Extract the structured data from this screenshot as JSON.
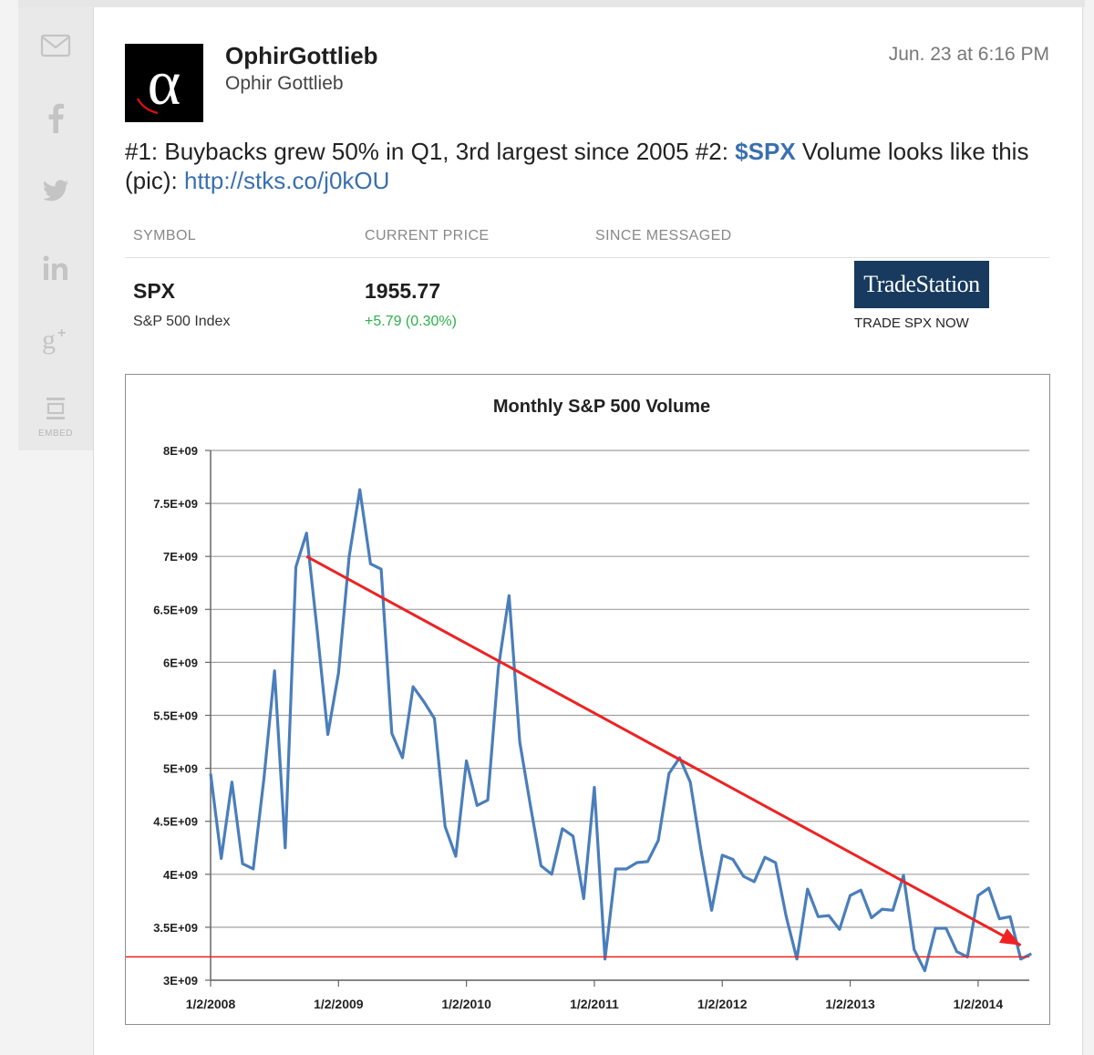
{
  "share_rail": {
    "items": [
      {
        "name": "mail-icon"
      },
      {
        "name": "facebook-icon"
      },
      {
        "name": "twitter-icon"
      },
      {
        "name": "linkedin-icon"
      },
      {
        "name": "google-plus-icon"
      },
      {
        "name": "embed-icon"
      }
    ],
    "embed_label": "EMBED"
  },
  "message": {
    "author_name": "OphirGottlieb",
    "author_handle": "Ophir Gottlieb",
    "timestamp": "Jun. 23 at 6:16 PM",
    "avatar_glyph": "α",
    "text_part1": "#1: Buybacks grew 50% in Q1, 3rd largest since 2005 #2: ",
    "cashtag": "$SPX",
    "text_part2": " Volume looks like this (pic): ",
    "link": "http://stks.co/j0kOU"
  },
  "quote_table": {
    "headers": [
      "SYMBOL",
      "CURRENT PRICE",
      "SINCE MESSAGED"
    ],
    "symbol": "SPX",
    "symbol_name": "S&P 500 Index",
    "price": "1955.77",
    "change": "+5.79 (0.30%)",
    "change_color": "#2db14a",
    "broker_logo": "TradeStation",
    "broker_cta": "TRADE SPX NOW"
  },
  "chart_data": {
    "type": "line",
    "title": "Monthly S&P 500 Volume",
    "y_ticks": [
      "8E+09",
      "7.5E+09",
      "7E+09",
      "6.5E+09",
      "6E+09",
      "5.5E+09",
      "5E+09",
      "4.5E+09",
      "4E+09",
      "3.5E+09",
      "3E+09"
    ],
    "ylim": [
      3000000000,
      8000000000
    ],
    "x_ticks": [
      "1/2/2008",
      "1/2/2009",
      "1/2/2010",
      "1/2/2011",
      "1/2/2012",
      "1/2/2013",
      "1/2/2014"
    ],
    "x_start": "2008-01",
    "series": [
      {
        "color": "#4a7ebb",
        "values": [
          4950000000.0,
          4150000000.0,
          4870000000.0,
          4100000000.0,
          4050000000.0,
          4900000000.0,
          5920000000.0,
          4250000000.0,
          6900000000.0,
          7220000000.0,
          6300000000.0,
          5320000000.0,
          5900000000.0,
          7000000000.0,
          7630000000.0,
          6930000000.0,
          6880000000.0,
          5330000000.0,
          5100000000.0,
          5770000000.0,
          5630000000.0,
          5470000000.0,
          4450000000.0,
          4170000000.0,
          5070000000.0,
          4650000000.0,
          4700000000.0,
          5950000000.0,
          6630000000.0,
          5250000000.0,
          4650000000.0,
          4080000000.0,
          4000000000.0,
          4430000000.0,
          4360000000.0,
          3770000000.0,
          4820000000.0,
          3200000000.0,
          4050000000.0,
          4050000000.0,
          4110000000.0,
          4120000000.0,
          4320000000.0,
          4950000000.0,
          5100000000.0,
          4870000000.0,
          4230000000.0,
          3660000000.0,
          4180000000.0,
          4140000000.0,
          3980000000.0,
          3930000000.0,
          4160000000.0,
          4110000000.0,
          3600000000.0,
          3200000000.0,
          3860000000.0,
          3600000000.0,
          3610000000.0,
          3480000000.0,
          3800000000.0,
          3850000000.0,
          3590000000.0,
          3670000000.0,
          3660000000.0,
          3990000000.0,
          3290000000.0,
          3090000000.0,
          3490000000.0,
          3490000000.0,
          3270000000.0,
          3220000000.0,
          3800000000.0,
          3870000000.0,
          3580000000.0,
          3600000000.0,
          3200000000.0,
          3250000000.0
        ]
      }
    ],
    "annotations": {
      "trend_arrow": {
        "color": "#ee2222",
        "from": {
          "x": "2008-10",
          "y": 7000000000.0
        },
        "to": {
          "x": "2014-05",
          "y": 3330000000.0
        }
      },
      "horizontal_line": {
        "color": "#ee2222",
        "y": 3220000000.0
      }
    },
    "grid": true,
    "legend": "none"
  }
}
